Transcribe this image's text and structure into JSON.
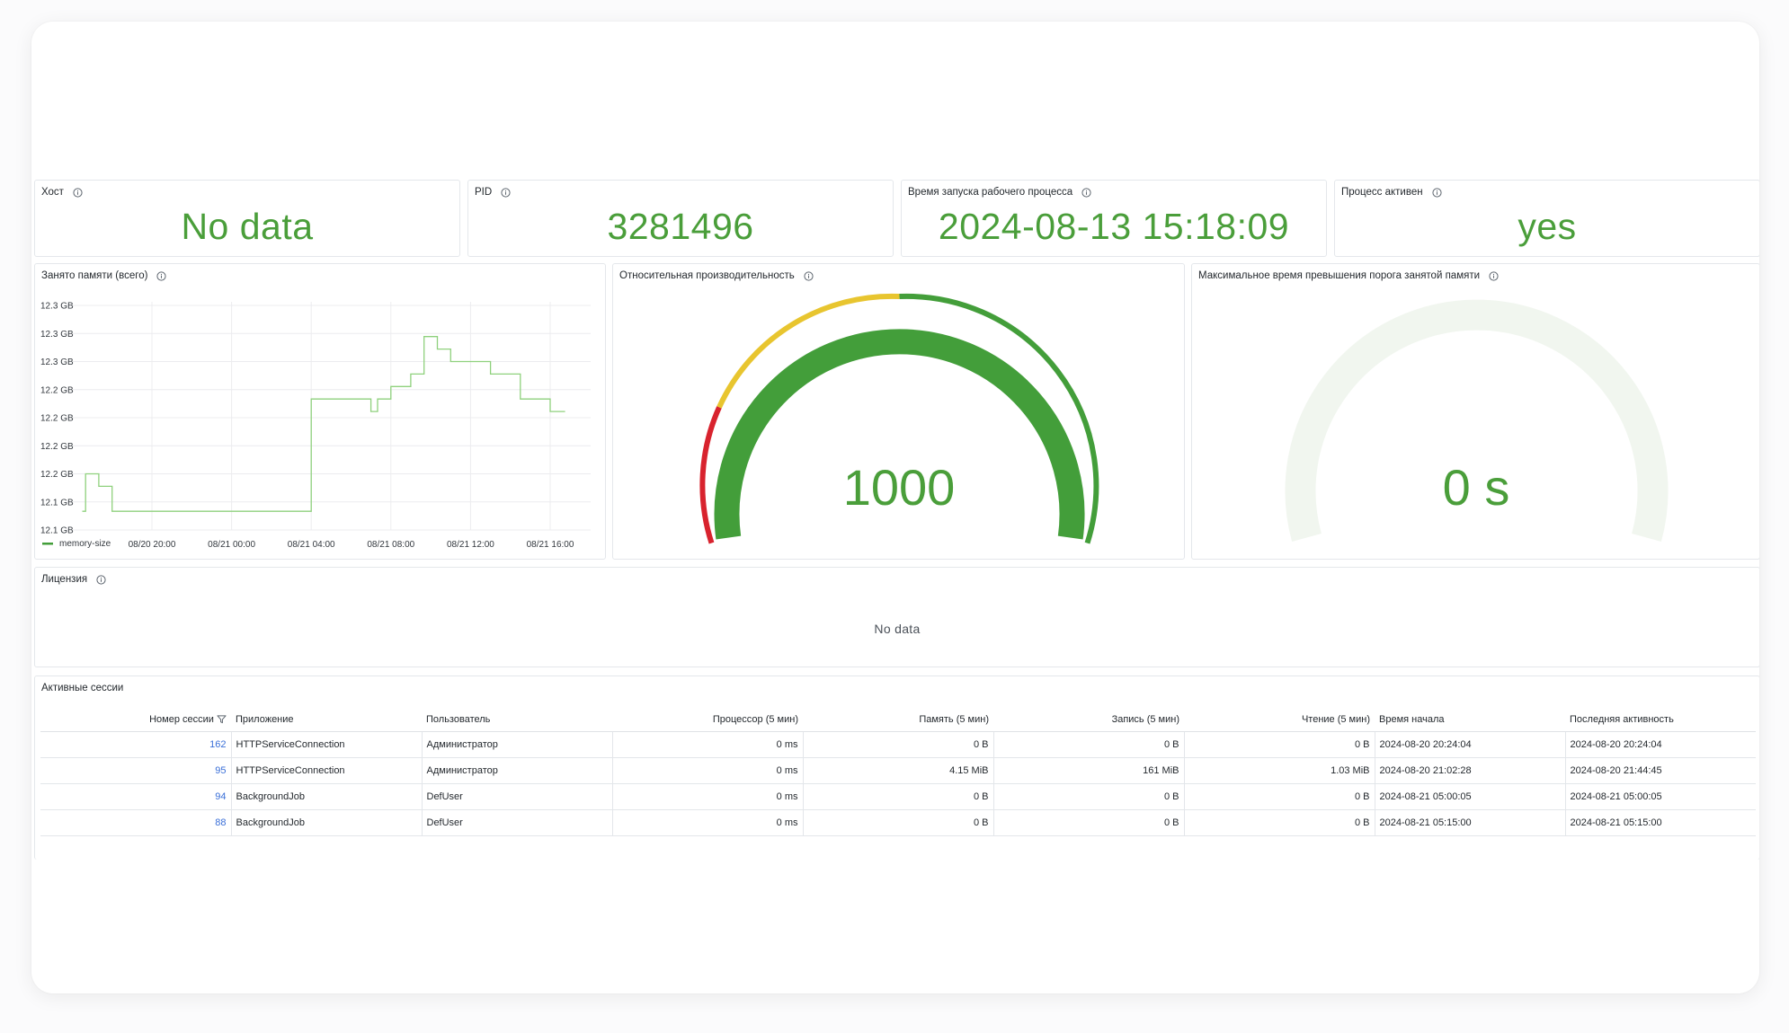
{
  "stats": {
    "host": {
      "title": "Хост",
      "value": "No data"
    },
    "pid": {
      "title": "PID",
      "value": "3281496"
    },
    "start_time": {
      "title": "Время запуска рабочего процесса",
      "value": "2024-08-13 15:18:09"
    },
    "active": {
      "title": "Процесс активен",
      "value": "yes"
    }
  },
  "memory_panel": {
    "title": "Занято памяти (всего)"
  },
  "perf_gauge": {
    "title": "Относительная производительность",
    "value": "1000"
  },
  "maxtime_gauge": {
    "title": "Максимальное время превышения порога занятой памяти",
    "value": "0 s"
  },
  "license": {
    "title": "Лицензия",
    "no_data": "No data"
  },
  "sessions": {
    "title": "Активные сессии",
    "columns": [
      "Номер сессии",
      "Приложение",
      "Пользователь",
      "Процессор (5 мин)",
      "Память (5 мин)",
      "Запись (5 мин)",
      "Чтение (5 мин)",
      "Время начала",
      "Последняя активность"
    ],
    "rows": [
      [
        "162",
        "HTTPServiceConnection",
        "Администратор",
        "0 ms",
        "0 B",
        "0 B",
        "0 B",
        "2024-08-20 20:24:04",
        "2024-08-20 20:24:04"
      ],
      [
        "95",
        "HTTPServiceConnection",
        "Администратор",
        "0 ms",
        "4.15 MiB",
        "161 MiB",
        "1.03 MiB",
        "2024-08-20 21:02:28",
        "2024-08-20 21:44:45"
      ],
      [
        "94",
        "BackgroundJob",
        "DefUser",
        "0 ms",
        "0 B",
        "0 B",
        "0 B",
        "2024-08-21 05:00:05",
        "2024-08-21 05:00:05"
      ],
      [
        "88",
        "BackgroundJob",
        "DefUser",
        "0 ms",
        "0 B",
        "0 B",
        "0 B",
        "2024-08-21 05:15:00",
        "2024-08-21 05:15:00"
      ]
    ]
  },
  "icons": {
    "info": "info-icon",
    "filter": "filter-icon"
  },
  "colors": {
    "value_green": "#4a9e3a",
    "series_green": "#8fd17d",
    "gauge_green": "#439e3a",
    "gauge_yellow": "#e8c52f",
    "gauge_red": "#d8232e",
    "link_blue": "#3a6fd8"
  },
  "chart_data": {
    "type": "line",
    "series": [
      {
        "name": "memory-size",
        "points": [
          [
            "08/20 16:30",
            12.12
          ],
          [
            "08/20 16:40",
            12.15
          ],
          [
            "08/20 17:00",
            12.15
          ],
          [
            "08/20 17:20",
            12.14
          ],
          [
            "08/20 17:40",
            12.14
          ],
          [
            "08/20 18:00",
            12.12
          ],
          [
            "08/20 18:20",
            12.12
          ],
          [
            "08/20 19:00",
            12.12
          ],
          [
            "08/20 19:30",
            12.12
          ],
          [
            "08/20 20:30",
            12.12
          ],
          [
            "08/20 21:10",
            12.12
          ],
          [
            "08/20 22:00",
            12.12
          ],
          [
            "08/20 23:30",
            12.12
          ],
          [
            "08/21 00:30",
            12.12
          ],
          [
            "08/21 02:00",
            12.12
          ],
          [
            "08/21 03:30",
            12.12
          ],
          [
            "08/21 04:00",
            12.21
          ],
          [
            "08/21 05:00",
            12.21
          ],
          [
            "08/21 06:00",
            12.21
          ],
          [
            "08/21 07:00",
            12.2
          ],
          [
            "08/21 07:20",
            12.21
          ],
          [
            "08/21 08:00",
            12.22
          ],
          [
            "08/21 09:00",
            12.23
          ],
          [
            "08/21 09:40",
            12.26
          ],
          [
            "08/21 10:00",
            12.26
          ],
          [
            "08/21 10:20",
            12.25
          ],
          [
            "08/21 11:00",
            12.24
          ],
          [
            "08/21 12:00",
            12.24
          ],
          [
            "08/21 13:00",
            12.23
          ],
          [
            "08/21 14:00",
            12.23
          ],
          [
            "08/21 14:30",
            12.21
          ],
          [
            "08/21 15:30",
            12.21
          ],
          [
            "08/21 16:00",
            12.2
          ],
          [
            "08/21 16:45",
            12.2
          ]
        ]
      }
    ],
    "x_ticks": [
      "08/20 20:00",
      "08/21 00:00",
      "08/21 04:00",
      "08/21 08:00",
      "08/21 12:00",
      "08/21 16:00"
    ],
    "y_ticks": [
      "12.3 GB",
      "12.3 GB",
      "12.3 GB",
      "12.2 GB",
      "12.2 GB",
      "12.2 GB",
      "12.2 GB",
      "12.1 GB",
      "12.1 GB"
    ],
    "ylim": [
      12.105,
      12.285
    ],
    "grid": true,
    "legend": "bottom-left"
  }
}
